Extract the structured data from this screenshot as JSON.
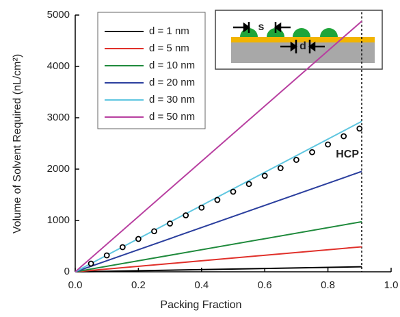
{
  "chart_data": {
    "type": "line",
    "y_label": "Volume of Solvent Required (nL/cm²)",
    "x_label": "Packing Fraction",
    "x": [
      0,
      0.907
    ],
    "series": [
      {
        "name": "d = 1 nm",
        "color": "#000000",
        "values": [
          0,
          98
        ]
      },
      {
        "name": "d = 5 nm",
        "color": "#e0302a",
        "values": [
          0,
          487
        ]
      },
      {
        "name": "d = 10 nm",
        "color": "#1f8a3c",
        "values": [
          0,
          975
        ]
      },
      {
        "name": "d = 20 nm",
        "color": "#2b3f9e",
        "values": [
          0,
          1955
        ]
      },
      {
        "name": "d = 30 nm",
        "color": "#5fc6e0",
        "values": [
          0,
          2930
        ]
      },
      {
        "name": "d = 50 nm",
        "color": "#b83fa0",
        "values": [
          0,
          4880
        ]
      }
    ],
    "points": {
      "x": [
        0.05,
        0.1,
        0.15,
        0.2,
        0.25,
        0.3,
        0.35,
        0.4,
        0.45,
        0.5,
        0.55,
        0.6,
        0.65,
        0.7,
        0.75,
        0.8,
        0.85,
        0.9
      ],
      "values": [
        160,
        320,
        480,
        640,
        790,
        940,
        1100,
        1250,
        1400,
        1560,
        1710,
        1870,
        2020,
        2180,
        2330,
        2480,
        2640,
        2790
      ]
    },
    "hcp": {
      "x": 0.907,
      "label": "HCP"
    },
    "inset_labels": [
      "s",
      "d"
    ],
    "xlim": [
      0,
      1
    ],
    "ylim": [
      0,
      5000
    ],
    "xticks": [
      {
        "value": 0,
        "label": "0.0"
      },
      0.2,
      0.4,
      0.6,
      0.8,
      {
        "value": 1,
        "label": "1.0"
      }
    ],
    "yticks": [
      0,
      1000,
      2000,
      3000,
      4000,
      5000
    ]
  }
}
